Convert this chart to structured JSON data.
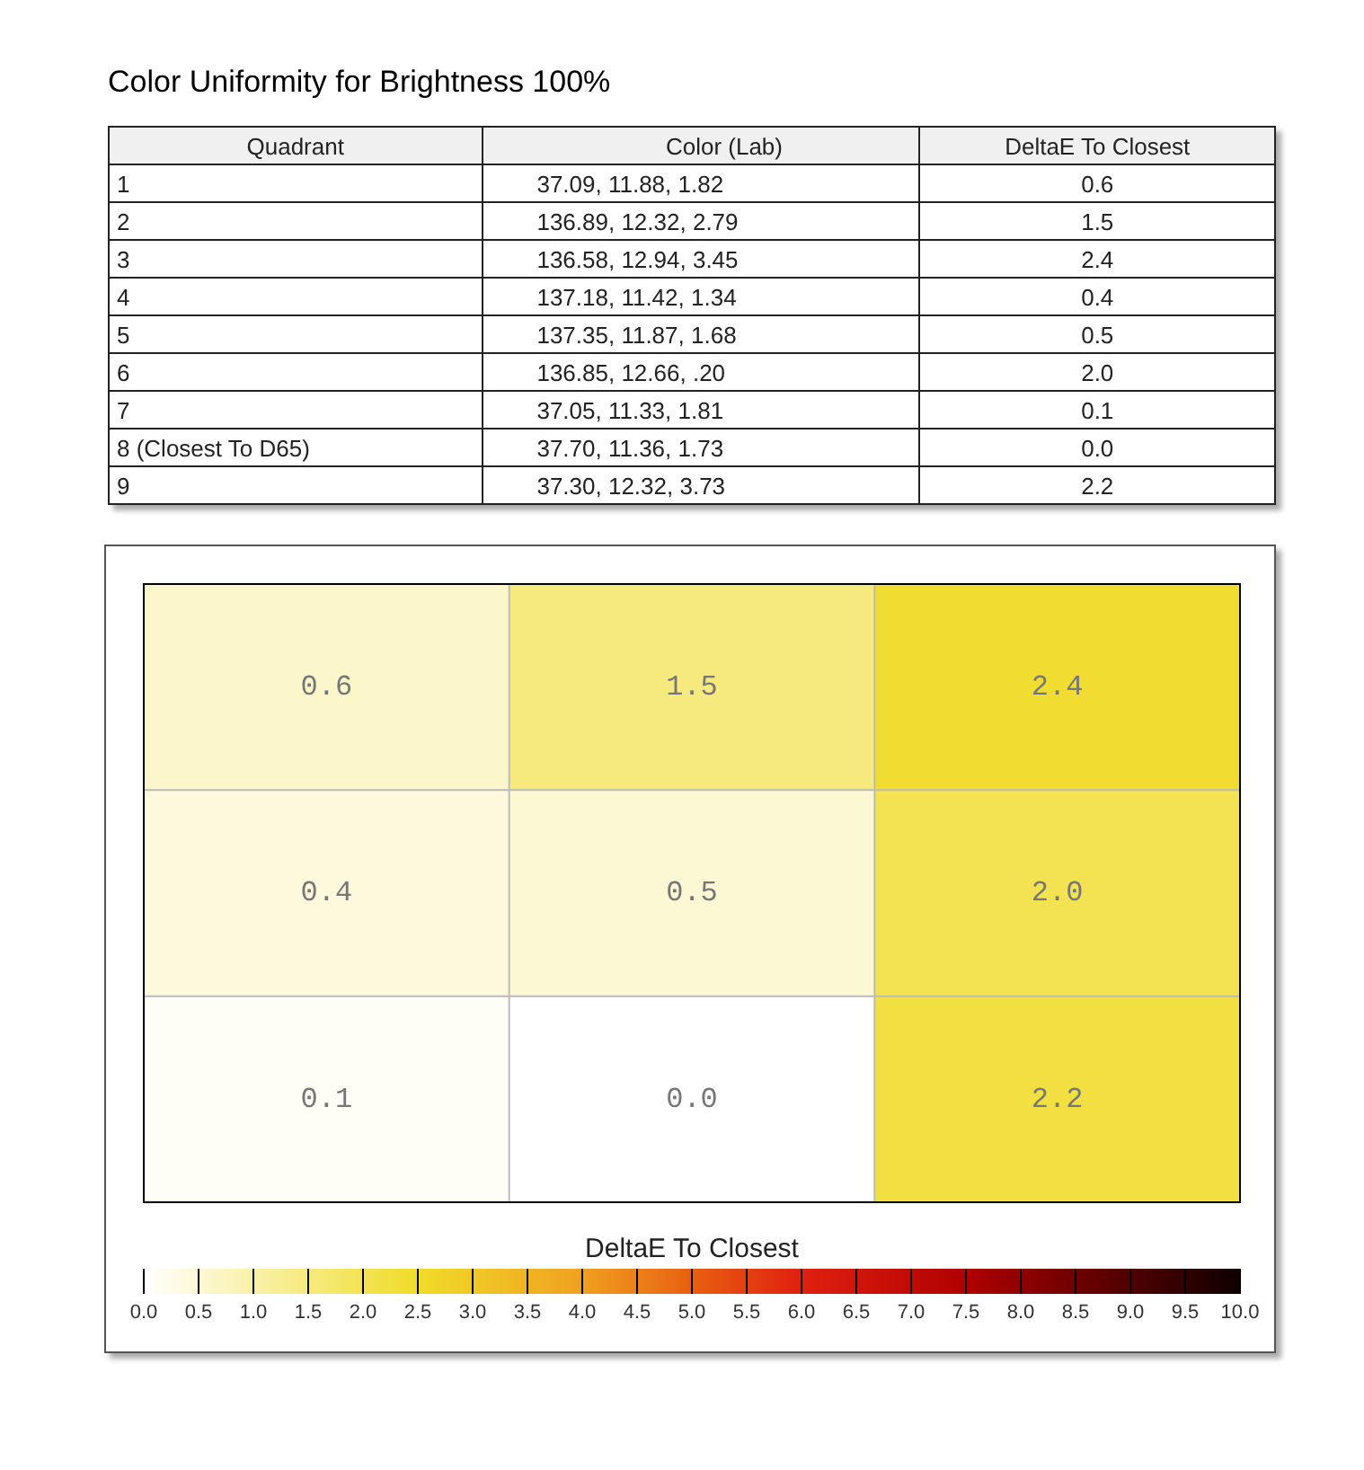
{
  "chart_data": [
    {
      "type": "other",
      "title": "Color Uniformity for Brightness 100%",
      "annotations": [
        "Quadrant",
        "Color (Lab)",
        "DeltaE To Closest",
        "1",
        "37.09,  11.88,   1.82",
        "0.6",
        "2",
        "136.89,  12.32,   2.79",
        "1.5",
        "3",
        "136.58,  12.94,   3.45",
        "2.4",
        "4",
        "137.18,  11.42,   1.34",
        "0.4",
        "5",
        "137.35,  11.87,   1.68",
        "0.5",
        "6",
        "136.85,  12.66,   .20",
        "2.0",
        "7",
        "37.05,  11.33,   1.81",
        "0.1",
        "8 (Closest To D65)",
        "37.70,  11.36,   1.73",
        "0.0",
        "9",
        "37.30,  12.32,   3.73",
        "2.2"
      ]
    },
    {
      "type": "heatmap",
      "categories": [
        null,
        null,
        null
      ],
      "y_categories": [
        null,
        null,
        null
      ],
      "cells": [
        [
          0.6,
          1.5,
          2.4
        ],
        [
          0.4,
          0.5,
          2.0
        ],
        [
          0.1,
          0.0,
          2.2
        ]
      ],
      "cell_labels": [
        [
          "0.6",
          "1.5",
          "2.4"
        ],
        [
          "0.4",
          "0.5",
          "2.0"
        ],
        [
          "0.1",
          "0.0",
          "2.2"
        ]
      ],
      "clabel": "DeltaE To Closest",
      "clim": [
        0,
        10
      ],
      "grid": true,
      "cticks": [
        {
          "value": 0,
          "label": "0.0"
        },
        {
          "value": 0.5,
          "label": "0.5"
        },
        {
          "value": 1,
          "label": "1.0"
        },
        {
          "value": 1.5,
          "label": "1.5"
        },
        {
          "value": 2,
          "label": "2.0"
        },
        {
          "value": 2.5,
          "label": "2.5"
        },
        {
          "value": 3,
          "label": "3.0"
        },
        {
          "value": 3.5,
          "label": "3.5"
        },
        {
          "value": 4,
          "label": "4.0"
        },
        {
          "value": 4.5,
          "label": "4.5"
        },
        {
          "value": 5,
          "label": "5.0"
        },
        {
          "value": 5.5,
          "label": "5.5"
        },
        {
          "value": 6,
          "label": "6.0"
        },
        {
          "value": 6.5,
          "label": "6.5"
        },
        {
          "value": 7,
          "label": "7.0"
        },
        {
          "value": 7.5,
          "label": "7.5"
        },
        {
          "value": 8,
          "label": "8.0"
        },
        {
          "value": 8.5,
          "label": "8.5"
        },
        {
          "value": 9,
          "label": "9.0"
        },
        {
          "value": 9.5,
          "label": "9.5"
        },
        {
          "value": 10,
          "label": "10.0"
        }
      ]
    }
  ]
}
